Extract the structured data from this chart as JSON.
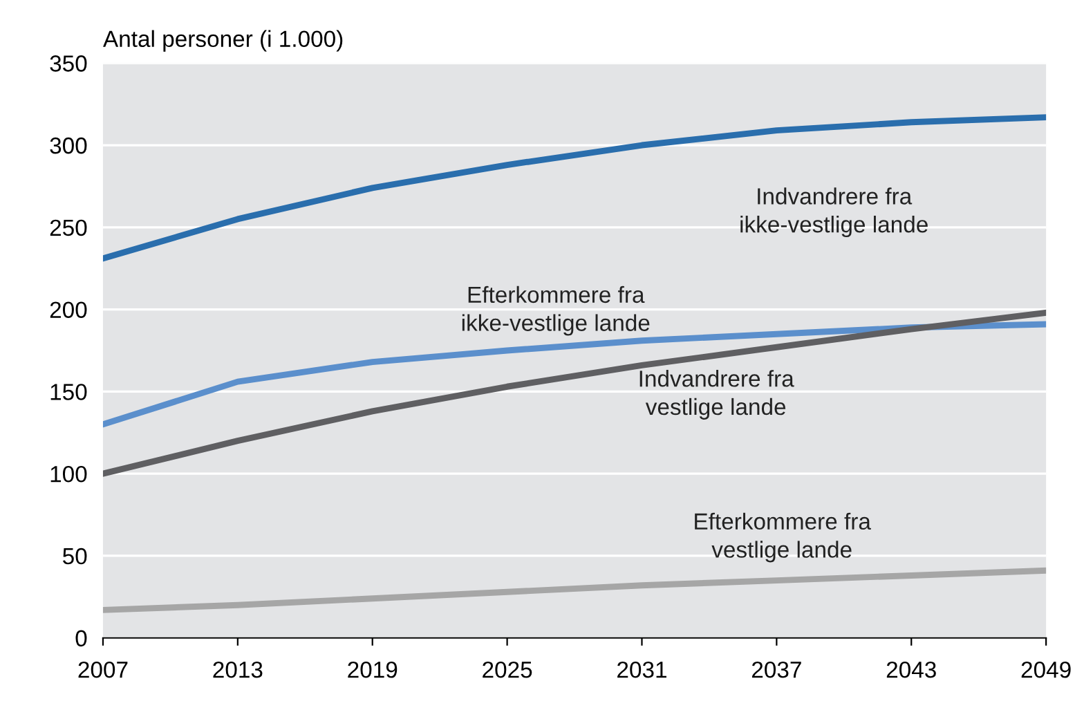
{
  "chart_data": {
    "type": "line",
    "ylabel": "Antal personer (i 1.000)",
    "x": [
      2007,
      2013,
      2019,
      2025,
      2031,
      2037,
      2043,
      2049
    ],
    "series": [
      {
        "name": "Indvandrere fra ikke-vestlige lande",
        "color": "#2a6ead",
        "values": [
          231,
          255,
          274,
          288,
          300,
          309,
          314,
          317
        ]
      },
      {
        "name": "Efterkommere fra ikke-vestlige lande",
        "color": "#5b8fcc",
        "values": [
          130,
          156,
          168,
          175,
          181,
          185,
          189,
          191
        ]
      },
      {
        "name": "Indvandrere fra vestlige lande",
        "color": "#5f5f62",
        "values": [
          100,
          120,
          138,
          153,
          166,
          177,
          188,
          198
        ]
      },
      {
        "name": "Efterkommere fra vestlige lande",
        "color": "#a6a6a6",
        "values": [
          17,
          20,
          24,
          28,
          32,
          35,
          38,
          41
        ]
      }
    ],
    "xlim": [
      2007,
      2049
    ],
    "xticks": [
      2007,
      2013,
      2019,
      2025,
      2031,
      2037,
      2043,
      2049
    ],
    "ylim": [
      0,
      350
    ],
    "yticks": [
      0,
      50,
      100,
      150,
      200,
      250,
      300,
      350
    ],
    "grid": "y",
    "legend": false,
    "marker": "none",
    "line_style": "solid"
  }
}
